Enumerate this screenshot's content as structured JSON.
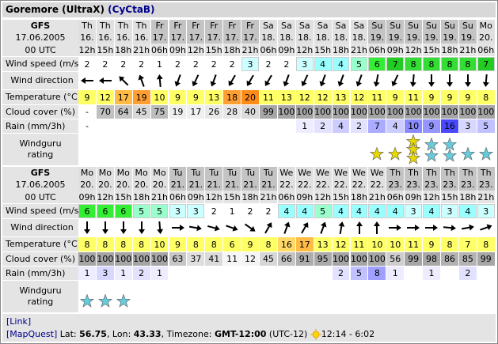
{
  "header": {
    "title": "Goremore (UltraX)",
    "link": "(CyCtaB)"
  },
  "tables": [
    {
      "model": "GFS",
      "date": "17.06.2005",
      "run": "00 UTC",
      "days": [
        "Th",
        "Th",
        "Th",
        "Th",
        "Fr",
        "Fr",
        "Fr",
        "Fr",
        "Fr",
        "Fr",
        "Sa",
        "Sa",
        "Sa",
        "Sa",
        "Sa",
        "Sa",
        "Su",
        "Su",
        "Su",
        "Su",
        "Su",
        "Su",
        "Mo"
      ],
      "dates": [
        "16.",
        "16.",
        "16.",
        "16.",
        "17.",
        "17.",
        "17.",
        "17.",
        "17.",
        "17.",
        "18.",
        "18.",
        "18.",
        "18.",
        "18.",
        "18.",
        "19.",
        "19.",
        "19.",
        "19.",
        "19.",
        "19.",
        "20."
      ],
      "hours": [
        "12h",
        "15h",
        "18h",
        "21h",
        "06h",
        "09h",
        "12h",
        "15h",
        "18h",
        "21h",
        "06h",
        "09h",
        "12h",
        "15h",
        "18h",
        "21h",
        "06h",
        "09h",
        "12h",
        "15h",
        "18h",
        "21h",
        "06h"
      ],
      "row_labels": {
        "wind_speed": "Wind speed (m/s)",
        "wind_direction": "Wind direction",
        "temperature": "Temperature (°C)",
        "cloud_cover": "Cloud cover (%)",
        "rain": "Rain (mm/3h)",
        "rating": "Windguru rating"
      },
      "wind_speed": [
        2,
        2,
        2,
        2,
        1,
        2,
        2,
        2,
        2,
        3,
        2,
        2,
        3,
        4,
        4,
        5,
        6,
        7,
        8,
        8,
        8,
        8,
        7
      ],
      "temperature": [
        9,
        12,
        17,
        19,
        10,
        9,
        9,
        13,
        18,
        20,
        11,
        13,
        12,
        12,
        13,
        12,
        11,
        9,
        11,
        9,
        9,
        9,
        8
      ],
      "cloud_cover": [
        "-",
        70,
        64,
        45,
        75,
        19,
        17,
        26,
        28,
        40,
        99,
        100,
        100,
        100,
        100,
        100,
        100,
        100,
        100,
        100,
        100,
        100,
        100
      ],
      "rain": [
        "-",
        null,
        null,
        null,
        null,
        null,
        null,
        null,
        null,
        null,
        null,
        null,
        1,
        2,
        4,
        2,
        7,
        4,
        10,
        9,
        16,
        3,
        5
      ]
    },
    {
      "model": "GFS",
      "date": "17.06.2005",
      "run": "00 UTC",
      "days": [
        "Mo",
        "Mo",
        "Mo",
        "Mo",
        "Mo",
        "Tu",
        "Tu",
        "Tu",
        "Tu",
        "Tu",
        "Tu",
        "We",
        "We",
        "We",
        "We",
        "We",
        "We",
        "Th",
        "Th",
        "Th",
        "Th",
        "Th",
        "Th"
      ],
      "dates": [
        "20.",
        "20.",
        "20.",
        "20.",
        "20.",
        "21.",
        "21.",
        "21.",
        "21.",
        "21.",
        "21.",
        "22.",
        "22.",
        "22.",
        "22.",
        "22.",
        "22.",
        "23.",
        "23.",
        "23.",
        "23.",
        "23.",
        "23."
      ],
      "hours": [
        "09h",
        "12h",
        "15h",
        "18h",
        "21h",
        "06h",
        "09h",
        "12h",
        "15h",
        "18h",
        "21h",
        "06h",
        "09h",
        "12h",
        "15h",
        "18h",
        "21h",
        "06h",
        "09h",
        "12h",
        "15h",
        "18h",
        "21h"
      ],
      "row_labels": {
        "wind_speed": "Wind speed (m/s)",
        "wind_direction": "Wind direction",
        "temperature": "Temperature (°C)",
        "cloud_cover": "Cloud cover (%)",
        "rain": "Rain (mm/3h)",
        "rating": "Windguru rating"
      },
      "wind_speed": [
        6,
        6,
        6,
        5,
        5,
        3,
        3,
        2,
        1,
        2,
        2,
        4,
        4,
        5,
        4,
        4,
        4,
        4,
        3,
        4,
        3,
        4,
        3
      ],
      "temperature": [
        8,
        8,
        8,
        8,
        10,
        9,
        8,
        8,
        6,
        9,
        8,
        16,
        17,
        13,
        12,
        11,
        10,
        10,
        11,
        9,
        8,
        7,
        8
      ],
      "cloud_cover": [
        100,
        100,
        100,
        100,
        100,
        63,
        37,
        41,
        11,
        12,
        45,
        66,
        91,
        95,
        100,
        100,
        100,
        56,
        99,
        98,
        86,
        85,
        99
      ],
      "rain": [
        1,
        3,
        1,
        2,
        1,
        null,
        null,
        null,
        null,
        null,
        null,
        null,
        null,
        null,
        2,
        5,
        8,
        1,
        null,
        1,
        null,
        2,
        null
      ]
    }
  ],
  "footer": {
    "link": "[Link]",
    "mapquest": "[MapQuest]",
    "lat_label": "Lat:",
    "lat": "56.75",
    "lon_label": ", Lon:",
    "lon": "43.33",
    "tz_label": ", Timezone:",
    "tz": "GMT-12:00",
    "utc": "(UTC-12)",
    "sun": "12:14 - 6:02"
  }
}
